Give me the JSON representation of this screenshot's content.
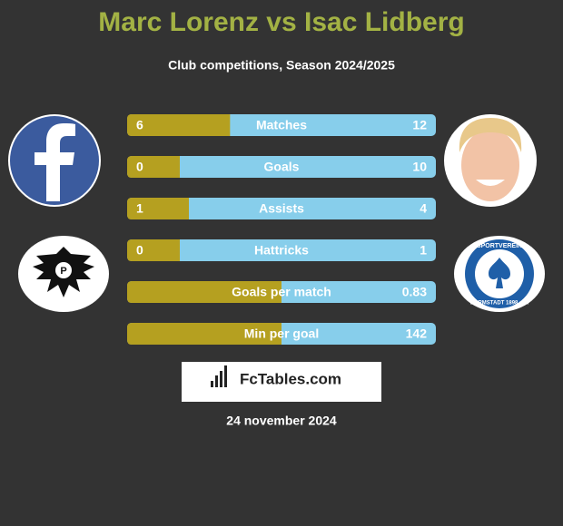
{
  "header": {
    "title": "Marc Lorenz vs Isac Lidberg",
    "subtitle": "Club competitions, Season 2024/2025"
  },
  "rows": [
    {
      "label": "Matches",
      "left": 6,
      "right": 12
    },
    {
      "label": "Goals",
      "left": 0,
      "right": 10
    },
    {
      "label": "Assists",
      "left": 1,
      "right": 4
    },
    {
      "label": "Hattricks",
      "left": 0,
      "right": 1
    },
    {
      "label": "Goals per match",
      "right": 0.83
    },
    {
      "label": "Min per goal",
      "right": 142
    }
  ],
  "logos": {
    "right_club_top": "SPORTVEREIN",
    "right_club_bottom": "DARMSTADT 1898 e.V."
  },
  "brand": "FcTables.com",
  "date": "24 november 2024"
}
